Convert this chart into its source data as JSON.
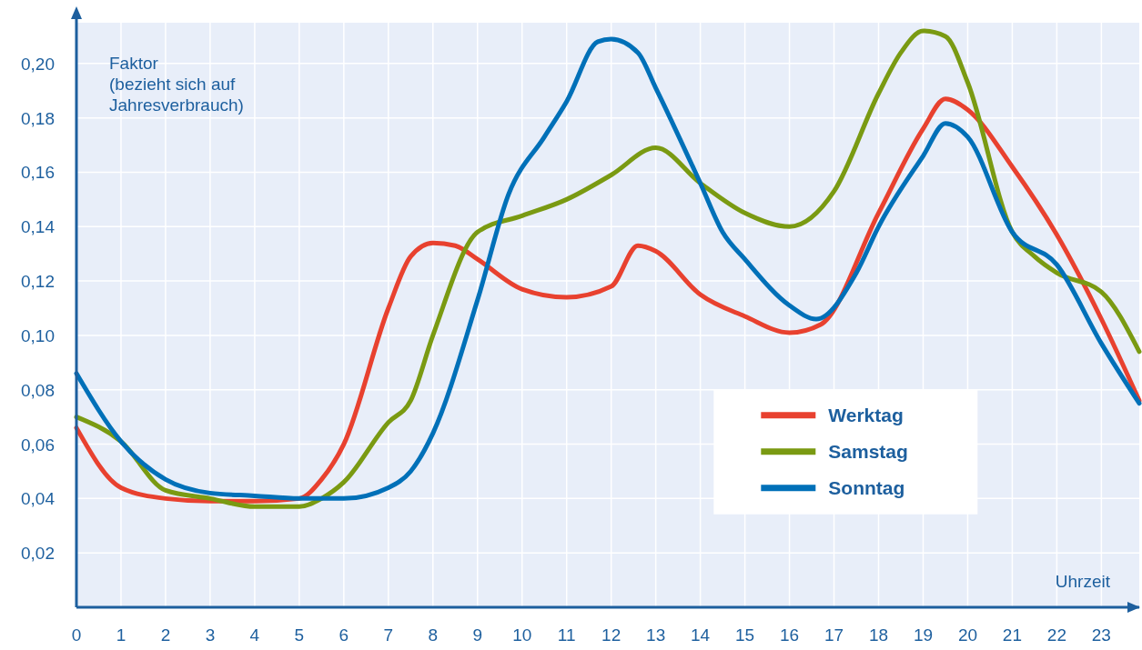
{
  "chart_data": {
    "type": "line",
    "xlabel": "Uhrzeit",
    "ylabel": "Faktor\n(bezieht sich auf\nJahresverbrauch)",
    "xlim": [
      0,
      23.85
    ],
    "ylim": [
      0,
      0.215
    ],
    "xticks": [
      0,
      1,
      2,
      3,
      4,
      5,
      6,
      7,
      8,
      9,
      10,
      11,
      12,
      13,
      14,
      15,
      16,
      17,
      18,
      19,
      20,
      21,
      22,
      23
    ],
    "yticks": [
      {
        "value": 0.02,
        "label": "0,02"
      },
      {
        "value": 0.04,
        "label": "0,04"
      },
      {
        "value": 0.06,
        "label": "0,06"
      },
      {
        "value": 0.08,
        "label": "0,08"
      },
      {
        "value": 0.1,
        "label": "0,10"
      },
      {
        "value": 0.12,
        "label": "0,12"
      },
      {
        "value": 0.14,
        "label": "0,14"
      },
      {
        "value": 0.16,
        "label": "0,16"
      },
      {
        "value": 0.18,
        "label": "0,18"
      },
      {
        "value": 0.2,
        "label": "0,20"
      }
    ],
    "grid": true,
    "legend": "bottom right",
    "marker": "none",
    "line_style": "solid",
    "series": [
      {
        "name": "Werktag",
        "color": "#e8412f",
        "x": [
          0,
          1,
          2,
          3,
          4,
          5,
          5.5,
          6,
          7,
          7.5,
          8,
          8.5,
          9,
          10,
          11,
          12,
          12.6,
          13,
          14,
          15,
          16,
          16.7,
          18,
          19,
          19.5,
          20,
          21,
          22,
          23,
          23.85
        ],
        "values": [
          0.066,
          0.044,
          0.04,
          0.039,
          0.039,
          0.04,
          0.047,
          0.06,
          0.11,
          0.129,
          0.134,
          0.133,
          0.128,
          0.117,
          0.114,
          0.118,
          0.133,
          0.131,
          0.115,
          0.107,
          0.101,
          0.104,
          0.145,
          0.176,
          0.187,
          0.183,
          0.162,
          0.137,
          0.106,
          0.076
        ]
      },
      {
        "name": "Samstag",
        "color": "#7a9a12",
        "x": [
          0,
          1,
          2,
          3,
          4,
          5,
          5.5,
          6,
          7,
          7.5,
          8,
          9,
          10,
          11,
          12,
          13,
          14,
          15,
          16,
          17,
          18,
          18.5,
          19,
          19.5,
          20,
          21,
          21.5,
          22,
          23,
          23.85
        ],
        "values": [
          0.07,
          0.061,
          0.043,
          0.04,
          0.037,
          0.037,
          0.04,
          0.046,
          0.068,
          0.076,
          0.1,
          0.138,
          0.144,
          0.15,
          0.159,
          0.169,
          0.156,
          0.145,
          0.14,
          0.153,
          0.189,
          0.204,
          0.212,
          0.21,
          0.193,
          0.138,
          0.129,
          0.123,
          0.116,
          0.094
        ]
      },
      {
        "name": "Sonntag",
        "color": "#0070b8",
        "x": [
          0,
          1,
          2,
          3,
          4,
          5,
          6,
          7,
          7.5,
          8,
          9,
          9.7,
          10.5,
          11,
          11.7,
          12,
          12.6,
          13,
          14,
          14.5,
          15,
          16,
          16.6,
          17.5,
          18,
          19,
          19.5,
          20,
          21,
          22,
          23,
          23.85
        ],
        "values": [
          0.086,
          0.061,
          0.047,
          0.042,
          0.041,
          0.04,
          0.04,
          0.044,
          0.05,
          0.064,
          0.113,
          0.152,
          0.173,
          0.186,
          0.208,
          0.209,
          0.204,
          0.191,
          0.156,
          0.138,
          0.128,
          0.111,
          0.106,
          0.123,
          0.14,
          0.166,
          0.178,
          0.173,
          0.138,
          0.126,
          0.097,
          0.075
        ]
      }
    ]
  }
}
